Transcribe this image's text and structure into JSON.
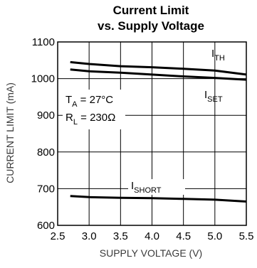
{
  "chart_data": {
    "type": "line",
    "title_line1": "Current Limit",
    "title_line2": "vs. Supply Voltage",
    "xlabel": "SUPPLY VOLTAGE (V)",
    "ylabel": "CURRENT LIMIT (mA)",
    "xlim": [
      2.5,
      5.5
    ],
    "ylim": [
      600,
      1100
    ],
    "xticks": [
      "2.5",
      "3.0",
      "3.5",
      "4.0",
      "4.5",
      "5.0",
      "5.5"
    ],
    "yticks": [
      "600",
      "700",
      "800",
      "900",
      "1000",
      "1100"
    ],
    "grid": true,
    "series": [
      {
        "name": "I_TH",
        "label_main": "I",
        "label_sub": "TH",
        "x": [
          2.7,
          3.0,
          3.5,
          4.0,
          4.5,
          5.0,
          5.5
        ],
        "y": [
          1045,
          1040,
          1034,
          1031,
          1027,
          1022,
          1011
        ]
      },
      {
        "name": "I_SET",
        "label_main": "I",
        "label_sub": "SET",
        "x": [
          2.7,
          3.0,
          3.5,
          4.0,
          4.5,
          5.0,
          5.5
        ],
        "y": [
          1025,
          1020,
          1016,
          1011,
          1006,
          1002,
          997
        ]
      },
      {
        "name": "I_SHORT",
        "label_main": "I",
        "label_sub": "SHORT",
        "x": [
          2.7,
          3.0,
          3.5,
          4.0,
          4.5,
          5.0,
          5.5
        ],
        "y": [
          680,
          677,
          675,
          674,
          672,
          670,
          665
        ]
      }
    ],
    "annotations": {
      "ta_main": "T",
      "ta_sub": "A",
      "ta_value": " = 27°C",
      "rl_main": "R",
      "rl_sub": "L",
      "rl_value": " = 230Ω"
    }
  }
}
